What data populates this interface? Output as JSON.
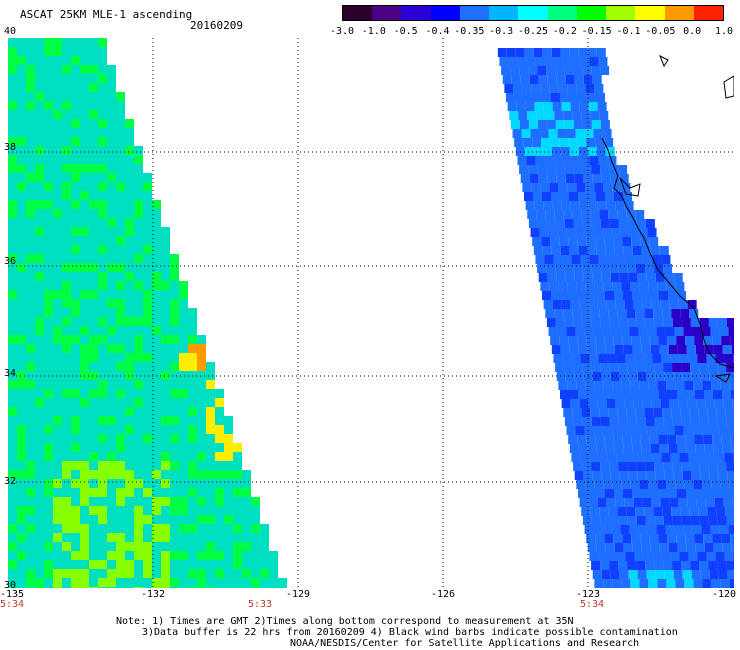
{
  "header": {
    "title": "ASCAT 25KM MLE-1 ascending",
    "date": "20160209"
  },
  "colorbar": {
    "labels": [
      "-3.0",
      "-1.0",
      "-0.5",
      "-0.4",
      "-0.35",
      "-0.3",
      "-0.25",
      "-0.2",
      "-0.15",
      "-0.1",
      "-0.05",
      "0.0",
      "1.0"
    ],
    "colors": [
      "#2a002a",
      "#4b0082",
      "#2b00d4",
      "#0000ff",
      "#1e70ff",
      "#00b4ff",
      "#00ffff",
      "#00ff7f",
      "#00ff00",
      "#a0ff00",
      "#ffff00",
      "#ff9900",
      "#ff2200"
    ]
  },
  "map": {
    "lat_labels": [
      "40",
      "38",
      "36",
      "34",
      "32",
      "30"
    ],
    "lon_labels": [
      "-135",
      "-132",
      "-129",
      "-126",
      "-123",
      "-120"
    ],
    "swath_colors": {
      "west_base": "#00e0c0",
      "west_green": "#00ff44",
      "west_lime": "#88ff00",
      "west_yellow": "#ffee00",
      "west_orange": "#ff9900",
      "east_base": "#1e6fff",
      "east_dark": "#1040ff",
      "east_violet": "#2a00c8",
      "east_cyan": "#00d8ff"
    }
  },
  "times": {
    "left_start": "5:34",
    "left_end": "5:33",
    "right_start": "5:34"
  },
  "notes": {
    "line1": "Note: 1) Times are GMT 2)Times along bottom correspond to measurement at 35N",
    "line2": "3)Data buffer is 22 hrs from 20160209 4) Black wind barbs indicate possible contamination",
    "line3": "NOAA/NESDIS/Center for Satellite Applications and Research"
  }
}
